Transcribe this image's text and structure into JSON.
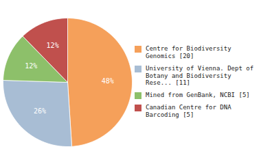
{
  "chart_data": {
    "type": "pie",
    "categories": [
      "Centre for Biodiversity\nGenomics [20]",
      "University of Vienna. Dept of\nBotany and Biodiversity\nRese... [11]",
      "Mined from GenBank, NCBI [5]",
      "Canadian Centre for DNA\nBarcoding [5]"
    ],
    "values": [
      48,
      26,
      12,
      12
    ],
    "value_labels": [
      "48%",
      "26%",
      "12%",
      "12%"
    ],
    "data_labels": true,
    "colors": [
      "#F5A05A",
      "#A8BDD4",
      "#8DC06A",
      "#C0504D"
    ],
    "legend": "right"
  }
}
